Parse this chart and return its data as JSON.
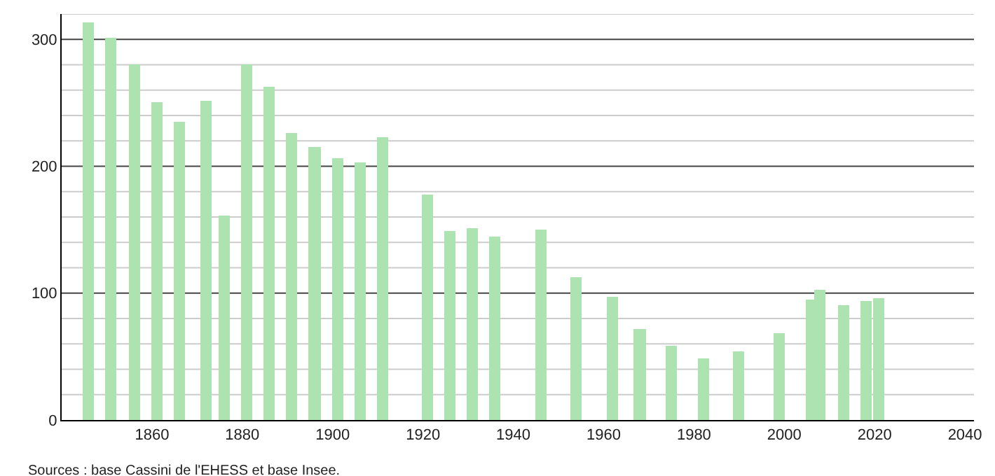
{
  "chart_data": {
    "type": "bar",
    "color": "#ade3b0",
    "x": [
      1846,
      1851,
      1856,
      1861,
      1866,
      1872,
      1876,
      1881,
      1886,
      1891,
      1896,
      1901,
      1906,
      1911,
      1921,
      1926,
      1931,
      1936,
      1946,
      1954,
      1962,
      1968,
      1975,
      1982,
      1990,
      1999,
      2006,
      2008,
      2013,
      2018,
      2021
    ],
    "values": [
      313,
      301,
      280,
      251,
      235,
      252,
      161,
      280,
      263,
      226,
      215,
      206,
      203,
      223,
      178,
      149,
      151,
      145,
      150,
      113,
      97,
      72,
      58,
      49,
      54,
      68,
      95,
      103,
      90,
      94,
      96
    ],
    "xlim": [
      1840,
      2042
    ],
    "xticks": [
      1860,
      1880,
      1900,
      1920,
      1940,
      1960,
      1980,
      2000,
      2020,
      2040
    ],
    "ylim": [
      0,
      320
    ],
    "yticks": [
      0,
      {
        "value": 20,
        "label": null
      },
      {
        "value": 40,
        "label": null
      },
      {
        "value": 60,
        "label": null
      },
      {
        "value": 80,
        "label": null
      },
      100,
      {
        "value": 120,
        "label": null
      },
      {
        "value": 140,
        "label": null
      },
      {
        "value": 160,
        "label": null
      },
      {
        "value": 180,
        "label": null
      },
      200,
      {
        "value": 220,
        "label": null
      },
      {
        "value": 240,
        "label": null
      },
      {
        "value": 260,
        "label": null
      },
      {
        "value": 280,
        "label": null
      },
      300,
      {
        "value": 320,
        "label": null
      }
    ],
    "grid": "y",
    "legend": false,
    "annotations": [
      "Sources : base Cassini de l'EHESS et base Insee."
    ]
  }
}
